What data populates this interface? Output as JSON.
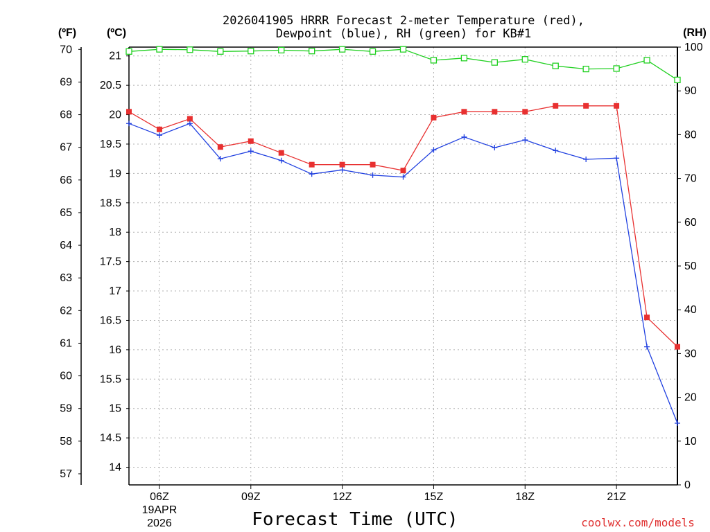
{
  "chart_data": {
    "type": "line",
    "title_line1": "2026041905 HRRR Forecast 2-meter Temperature (red),",
    "title_line2": "Dewpoint (blue), RH (green) for KB#1",
    "xlabel": "Forecast Time (UTC)",
    "credit": "coolwx.com/models",
    "unit_labels": {
      "f": "(ºF)",
      "c": "(ºC)",
      "rh": "(RH)"
    },
    "x_hours": [
      5,
      6,
      7,
      8,
      9,
      10,
      11,
      12,
      13,
      14,
      15,
      16,
      17,
      18,
      19,
      20,
      21,
      22,
      23
    ],
    "xlim": [
      5,
      23
    ],
    "x_ticks": [
      {
        "hour": 6,
        "label": "06Z",
        "sub1": "19APR",
        "sub2": "2026"
      },
      {
        "hour": 9,
        "label": "09Z"
      },
      {
        "hour": 12,
        "label": "12Z"
      },
      {
        "hour": 15,
        "label": "15Z"
      },
      {
        "hour": 18,
        "label": "18Z"
      },
      {
        "hour": 21,
        "label": "21Z"
      }
    ],
    "ylim_c": [
      13.7,
      21.15
    ],
    "ylim_rh": [
      0,
      100
    ],
    "f_ticks": [
      "57",
      "58",
      "59",
      "60",
      "61",
      "62",
      "63",
      "64",
      "65",
      "66",
      "67",
      "68",
      "69",
      "70"
    ],
    "c_ticks": [
      "14",
      "14.5",
      "15",
      "15.5",
      "16",
      "16.5",
      "17",
      "17.5",
      "18",
      "18.5",
      "19",
      "19.5",
      "20",
      "20.5",
      "21"
    ],
    "rh_ticks": [
      "0",
      "10",
      "20",
      "30",
      "40",
      "50",
      "60",
      "70",
      "80",
      "90",
      "100"
    ],
    "series": [
      {
        "name": "Temperature",
        "color": "#e83030",
        "marker": "square",
        "values_c": [
          20.05,
          19.75,
          19.93,
          19.45,
          19.55,
          19.35,
          19.15,
          19.15,
          19.15,
          19.05,
          19.95,
          20.05,
          20.05,
          20.05,
          20.15,
          20.15,
          20.15,
          16.55,
          16.05
        ]
      },
      {
        "name": "Dewpoint",
        "color": "#2040e0",
        "marker": "plus",
        "values_c": [
          19.85,
          19.65,
          19.85,
          19.25,
          19.38,
          19.22,
          18.99,
          19.06,
          18.97,
          18.94,
          19.4,
          19.62,
          19.44,
          19.57,
          19.39,
          19.24,
          19.26,
          16.05,
          14.75
        ]
      },
      {
        "name": "RH",
        "color": "#20d020",
        "marker": "open-square",
        "values_rh": [
          99,
          99.5,
          99.4,
          99,
          99.1,
          99.3,
          99.1,
          99.5,
          99,
          99.5,
          97,
          97.5,
          96.5,
          97.2,
          95.7,
          95,
          95.1,
          97,
          92.5
        ]
      }
    ]
  }
}
